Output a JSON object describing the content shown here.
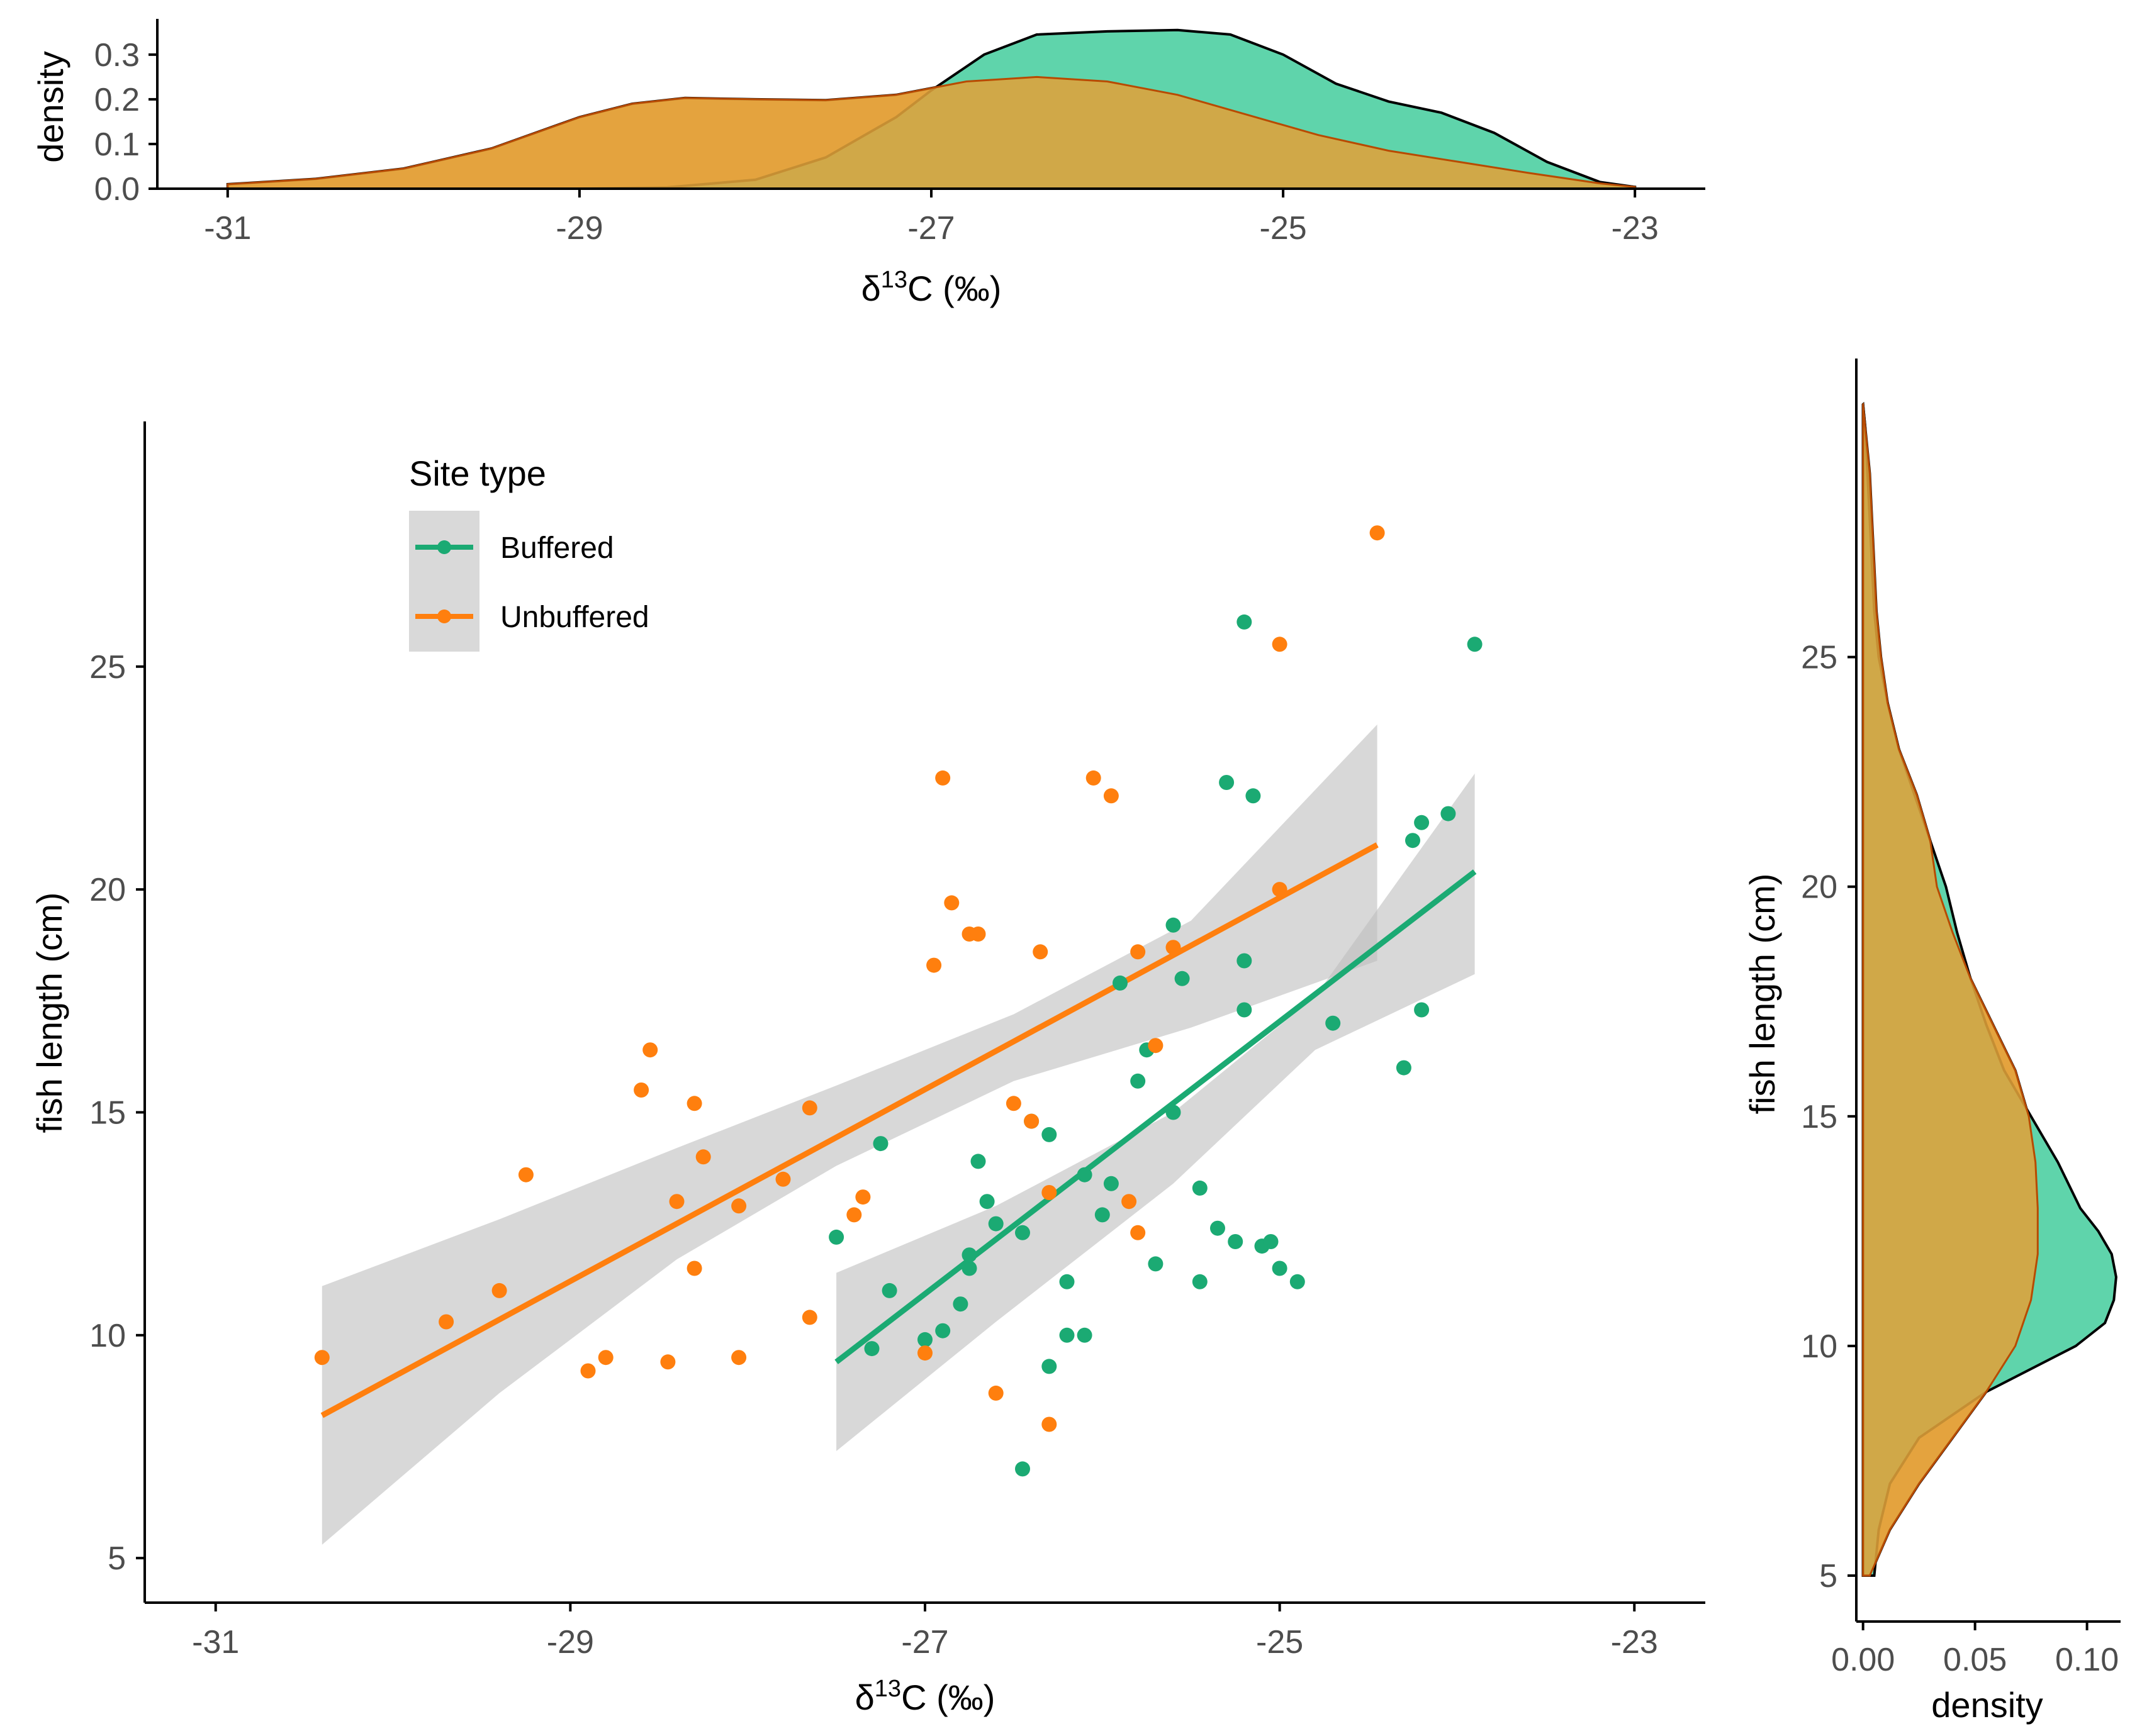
{
  "colors": {
    "buffered": "#1BAA73",
    "buffered_fill": "#5FD4AB",
    "unbuffered": "#FF7F0E",
    "unbuffered_fill": "#FFAF5F",
    "overlap_fill": "#E0A23A",
    "ci_band": "#BEBEBE"
  },
  "chart_data": [
    {
      "id": "top_density",
      "type": "area",
      "title": "",
      "xlabel_base": "δ",
      "xlabel_sup": "13",
      "xlabel_rest": "C (‰)",
      "ylabel": "density",
      "xlim": [
        -31.4,
        -22.6
      ],
      "ylim": [
        0,
        0.38
      ],
      "xticks": [
        "-31",
        "-29",
        "-27",
        "-25",
        "-23"
      ],
      "xtick_values": [
        -31,
        -29,
        -27,
        -25,
        -23
      ],
      "yticks": [
        "0.0",
        "0.1",
        "0.2",
        "0.3"
      ],
      "ytick_values": [
        0,
        0.1,
        0.2,
        0.3
      ],
      "series": [
        {
          "name": "Unbuffered",
          "x": [
            -31,
            -30.5,
            -30,
            -29.5,
            -29,
            -28.7,
            -28.4,
            -28,
            -27.6,
            -27.2,
            -26.8,
            -26.4,
            -26,
            -25.6,
            -25.2,
            -24.8,
            -24.4,
            -24,
            -23.6,
            -23.2,
            -23
          ],
          "y": [
            0.01,
            0.022,
            0.045,
            0.09,
            0.16,
            0.19,
            0.203,
            0.2,
            0.198,
            0.21,
            0.24,
            0.25,
            0.24,
            0.21,
            0.165,
            0.12,
            0.085,
            0.06,
            0.035,
            0.012,
            0.004
          ]
        },
        {
          "name": "Buffered",
          "x": [
            -29,
            -28.5,
            -28,
            -27.6,
            -27.2,
            -27,
            -26.7,
            -26.4,
            -26,
            -25.6,
            -25.3,
            -25,
            -24.7,
            -24.4,
            -24.1,
            -23.8,
            -23.5,
            -23.2,
            -23
          ],
          "y": [
            0.0,
            0.003,
            0.02,
            0.07,
            0.16,
            0.22,
            0.3,
            0.345,
            0.352,
            0.355,
            0.345,
            0.3,
            0.235,
            0.195,
            0.17,
            0.125,
            0.06,
            0.015,
            0.004
          ]
        }
      ]
    },
    {
      "id": "scatter",
      "type": "scatter",
      "title": "",
      "xlabel_base": "δ",
      "xlabel_sup": "13",
      "xlabel_rest": "C (‰)",
      "ylabel": "fish length (cm)",
      "xlim": [
        -31.4,
        -22.6
      ],
      "ylim": [
        4,
        30.5
      ],
      "xticks": [
        "-31",
        "-29",
        "-27",
        "-25",
        "-23"
      ],
      "xtick_values": [
        -31,
        -29,
        -27,
        -25,
        -23
      ],
      "yticks": [
        "5",
        "10",
        "15",
        "20",
        "25"
      ],
      "ytick_values": [
        5,
        10,
        15,
        20,
        25
      ],
      "legend": {
        "title": "Site type",
        "position": "top-left",
        "entries": [
          "Buffered",
          "Unbuffered"
        ]
      },
      "series": [
        {
          "name": "Buffered",
          "points": [
            [
              -27.5,
              12.2
            ],
            [
              -27.3,
              9.7
            ],
            [
              -27.25,
              14.3
            ],
            [
              -27.2,
              11.0
            ],
            [
              -27.0,
              9.9
            ],
            [
              -26.9,
              10.1
            ],
            [
              -26.8,
              10.7
            ],
            [
              -26.75,
              11.5
            ],
            [
              -26.75,
              11.8
            ],
            [
              -26.7,
              13.9
            ],
            [
              -26.65,
              13.0
            ],
            [
              -26.6,
              12.5
            ],
            [
              -26.45,
              12.3
            ],
            [
              -26.45,
              7.0
            ],
            [
              -26.4,
              14.8
            ],
            [
              -26.3,
              14.5
            ],
            [
              -26.3,
              9.3
            ],
            [
              -26.2,
              11.2
            ],
            [
              -26.2,
              10.0
            ],
            [
              -26.1,
              10.0
            ],
            [
              -26.1,
              13.6
            ],
            [
              -26.0,
              12.7
            ],
            [
              -25.95,
              13.4
            ],
            [
              -25.9,
              17.9
            ],
            [
              -25.8,
              15.7
            ],
            [
              -25.75,
              16.4
            ],
            [
              -25.7,
              11.6
            ],
            [
              -25.6,
              19.2
            ],
            [
              -25.6,
              15.0
            ],
            [
              -25.55,
              18.0
            ],
            [
              -25.45,
              11.2
            ],
            [
              -25.45,
              13.3
            ],
            [
              -25.35,
              12.4
            ],
            [
              -25.3,
              22.4
            ],
            [
              -25.25,
              12.1
            ],
            [
              -25.2,
              17.3
            ],
            [
              -25.2,
              18.4
            ],
            [
              -25.2,
              26.0
            ],
            [
              -25.15,
              22.1
            ],
            [
              -25.1,
              12.0
            ],
            [
              -25.05,
              12.1
            ],
            [
              -25.0,
              11.5
            ],
            [
              -24.9,
              11.2
            ],
            [
              -24.7,
              17.0
            ],
            [
              -24.3,
              16.0
            ],
            [
              -24.25,
              21.1
            ],
            [
              -24.2,
              21.5
            ],
            [
              -24.2,
              17.3
            ],
            [
              -24.05,
              21.7
            ],
            [
              -23.9,
              25.5
            ]
          ],
          "fit_line": [
            [
              -27.5,
              9.4
            ],
            [
              -23.9,
              20.4
            ]
          ],
          "ci_upper": [
            [
              -27.5,
              11.4
            ],
            [
              -26.6,
              12.9
            ],
            [
              -25.6,
              15.0
            ],
            [
              -24.8,
              17.6
            ],
            [
              -23.9,
              22.6
            ]
          ],
          "ci_lower": [
            [
              -27.5,
              7.4
            ],
            [
              -26.6,
              10.3
            ],
            [
              -25.6,
              13.4
            ],
            [
              -24.8,
              16.4
            ],
            [
              -23.9,
              18.1
            ]
          ]
        },
        {
          "name": "Unbuffered",
          "points": [
            [
              -30.4,
              9.5
            ],
            [
              -29.7,
              10.3
            ],
            [
              -29.4,
              11.0
            ],
            [
              -29.25,
              13.6
            ],
            [
              -28.9,
              9.2
            ],
            [
              -28.8,
              9.5
            ],
            [
              -28.6,
              15.5
            ],
            [
              -28.55,
              16.4
            ],
            [
              -28.45,
              9.4
            ],
            [
              -28.4,
              13.0
            ],
            [
              -28.3,
              11.5
            ],
            [
              -28.3,
              15.2
            ],
            [
              -28.25,
              14.0
            ],
            [
              -28.05,
              9.5
            ],
            [
              -28.05,
              12.9
            ],
            [
              -27.8,
              13.5
            ],
            [
              -27.65,
              10.4
            ],
            [
              -27.65,
              15.1
            ],
            [
              -27.4,
              12.7
            ],
            [
              -27.35,
              13.1
            ],
            [
              -27.0,
              9.6
            ],
            [
              -26.95,
              18.3
            ],
            [
              -26.9,
              22.5
            ],
            [
              -26.85,
              19.7
            ],
            [
              -26.75,
              19.0
            ],
            [
              -26.7,
              19.0
            ],
            [
              -26.6,
              8.7
            ],
            [
              -26.5,
              15.2
            ],
            [
              -26.4,
              14.8
            ],
            [
              -26.35,
              18.6
            ],
            [
              -26.3,
              8.0
            ],
            [
              -26.3,
              13.2
            ],
            [
              -26.05,
              22.5
            ],
            [
              -25.95,
              22.1
            ],
            [
              -25.85,
              13.0
            ],
            [
              -25.8,
              12.3
            ],
            [
              -25.8,
              18.6
            ],
            [
              -25.7,
              16.5
            ],
            [
              -25.6,
              18.7
            ],
            [
              -25.0,
              25.5
            ],
            [
              -25.0,
              20.0
            ],
            [
              -24.45,
              28.0
            ]
          ],
          "fit_line": [
            [
              -30.4,
              8.2
            ],
            [
              -24.45,
              21.0
            ]
          ],
          "ci_upper": [
            [
              -30.4,
              11.1
            ],
            [
              -29.4,
              12.6
            ],
            [
              -28.4,
              14.2
            ],
            [
              -27.5,
              15.6
            ],
            [
              -26.5,
              17.2
            ],
            [
              -25.5,
              19.3
            ],
            [
              -24.45,
              23.7
            ]
          ],
          "ci_lower": [
            [
              -30.4,
              5.3
            ],
            [
              -29.4,
              8.7
            ],
            [
              -28.4,
              11.7
            ],
            [
              -27.5,
              13.8
            ],
            [
              -26.5,
              15.7
            ],
            [
              -25.5,
              16.9
            ],
            [
              -24.45,
              18.4
            ]
          ]
        }
      ]
    },
    {
      "id": "right_density",
      "type": "area",
      "title": "",
      "xlabel": "density",
      "ylabel": "fish length (cm)",
      "xlim": [
        -0.003,
        0.115
      ],
      "ylim": [
        4,
        31.5
      ],
      "xticks": [
        "0.00",
        "0.05",
        "0.10"
      ],
      "xtick_values": [
        0,
        0.05,
        0.1
      ],
      "yticks": [
        "5",
        "10",
        "15",
        "20",
        "25"
      ],
      "ytick_values": [
        5,
        10,
        15,
        20,
        25
      ],
      "series": [
        {
          "name": "Buffered",
          "length": [
            5,
            6,
            7,
            8,
            9,
            10,
            10.5,
            11,
            11.5,
            12,
            12.5,
            13,
            14,
            15,
            16,
            17,
            18,
            19,
            20,
            21,
            22,
            23,
            24,
            25,
            26,
            27,
            28,
            29,
            30,
            30.5
          ],
          "density": [
            0.005,
            0.007,
            0.012,
            0.025,
            0.055,
            0.095,
            0.108,
            0.112,
            0.113,
            0.111,
            0.105,
            0.097,
            0.087,
            0.075,
            0.063,
            0.055,
            0.048,
            0.042,
            0.037,
            0.03,
            0.023,
            0.016,
            0.011,
            0.007,
            0.005,
            0.004,
            0.003,
            0.002,
            0.001,
            0.0
          ]
        },
        {
          "name": "Unbuffered",
          "length": [
            5,
            6,
            7,
            8,
            9,
            10,
            11,
            12,
            13,
            14,
            15,
            16,
            17,
            18,
            19,
            20,
            21,
            22,
            23,
            24,
            25,
            26,
            27,
            28,
            29,
            30,
            30.5
          ],
          "density": [
            0.003,
            0.012,
            0.025,
            0.04,
            0.055,
            0.068,
            0.075,
            0.078,
            0.078,
            0.077,
            0.074,
            0.068,
            0.058,
            0.048,
            0.04,
            0.033,
            0.03,
            0.024,
            0.016,
            0.011,
            0.008,
            0.006,
            0.005,
            0.004,
            0.003,
            0.001,
            0.0
          ]
        }
      ]
    }
  ]
}
